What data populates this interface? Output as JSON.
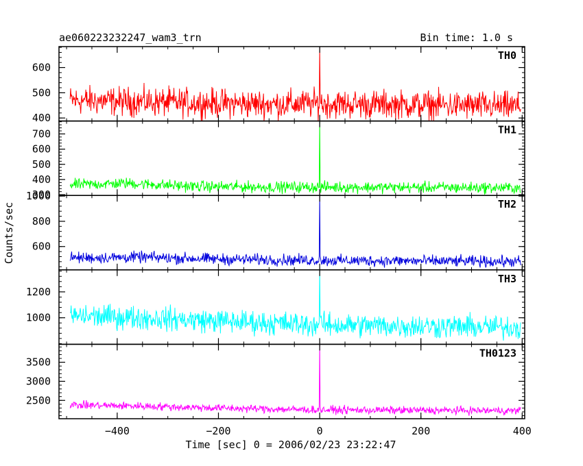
{
  "chart_data": {
    "type": "line",
    "title": "ae060223232247_wam3_trn",
    "bin_label": "Bin time: 1.0 s",
    "xlabel": "Time [sec] 0 = 2006/02/23 23:22:47",
    "ylabel": "Counts/sec",
    "xlim": [
      -515,
      405
    ],
    "x_ticks": [
      -400,
      -200,
      0,
      200,
      400
    ],
    "x_range": [
      -493,
      397
    ],
    "panels": [
      {
        "name": "TH0",
        "color": "#ff0000",
        "ylim": [
          388,
          683
        ],
        "y_ticks": [
          400,
          500,
          600
        ],
        "baseline": [
          [
            -493,
            470
          ],
          [
            -300,
            462
          ],
          [
            -100,
            455
          ],
          [
            0,
            456
          ],
          [
            200,
            452
          ],
          [
            397,
            445
          ]
        ],
        "noise": 28,
        "peak": 680
      },
      {
        "name": "TH1",
        "color": "#00ff00",
        "ylim": [
          295,
          785
        ],
        "y_ticks": [
          300,
          400,
          500,
          600,
          700
        ],
        "baseline": [
          [
            -493,
            365
          ],
          [
            -380,
            375
          ],
          [
            -250,
            355
          ],
          [
            -100,
            350
          ],
          [
            0,
            350
          ],
          [
            200,
            348
          ],
          [
            397,
            345
          ]
        ],
        "noise": 18,
        "peak": 785
      },
      {
        "name": "TH2",
        "color": "#0000dd",
        "ylim": [
          415,
          1005
        ],
        "y_ticks": [
          600,
          800,
          1000
        ],
        "baseline": [
          [
            -493,
            510
          ],
          [
            -350,
            515
          ],
          [
            -200,
            500
          ],
          [
            0,
            490
          ],
          [
            200,
            485
          ],
          [
            397,
            480
          ]
        ],
        "noise": 22,
        "peak": 1005
      },
      {
        "name": "TH3",
        "color": "#00ffff",
        "ylim": [
          795,
          1370
        ],
        "y_ticks": [
          1000,
          1200
        ],
        "baseline": [
          [
            -493,
            1015
          ],
          [
            -350,
            1000
          ],
          [
            -200,
            975
          ],
          [
            0,
            945
          ],
          [
            200,
            935
          ],
          [
            397,
            925
          ]
        ],
        "noise": 45,
        "peak": 1370
      },
      {
        "name": "TH0123",
        "color": "#ff00ff",
        "ylim": [
          2020,
          3970
        ],
        "y_ticks": [
          2500,
          3000,
          3500
        ],
        "baseline": [
          [
            -493,
            2380
          ],
          [
            -350,
            2350
          ],
          [
            -200,
            2300
          ],
          [
            0,
            2250
          ],
          [
            200,
            2240
          ],
          [
            397,
            2230
          ]
        ],
        "noise": 50,
        "peak": 3970
      }
    ]
  }
}
